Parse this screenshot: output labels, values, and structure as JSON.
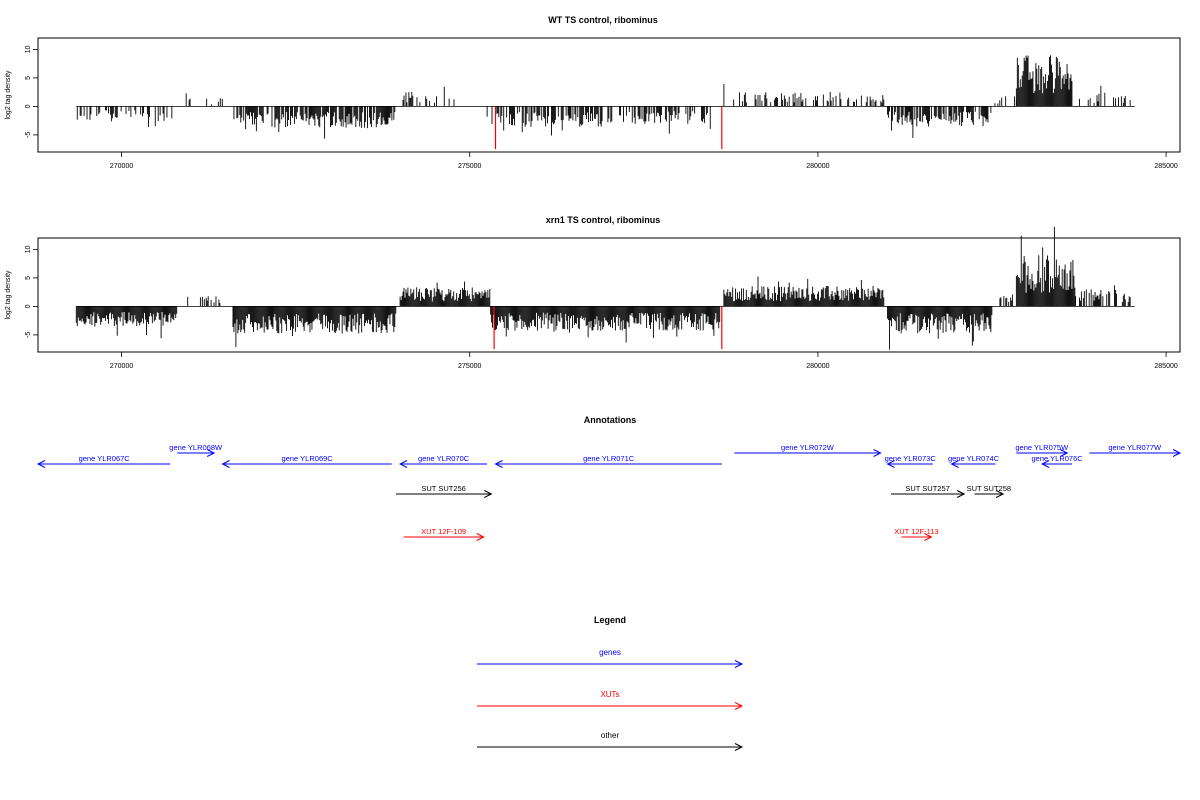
{
  "chart_data": [
    {
      "type": "bar",
      "title": "WT TS control, ribominus",
      "ylabel": "log2 tag density",
      "xlim": [
        268800,
        285200
      ],
      "ylim": [
        -8,
        12
      ],
      "x_ticks": [
        270000,
        275000,
        280000,
        285000
      ],
      "x_tick_labels": [
        "270000",
        "275000",
        "280000",
        "285000"
      ],
      "y_ticks": [
        -5,
        0,
        5,
        10
      ],
      "y_tick_labels": [
        "-5",
        "0",
        "5",
        "10"
      ],
      "baseline_range": [
        269350,
        284550
      ],
      "segments": [
        {
          "start": 269350,
          "end": 270800,
          "dir": -1,
          "density": 0.35,
          "amp": 2.2
        },
        {
          "start": 270900,
          "end": 271550,
          "dir": 1,
          "density": 0.15,
          "amp": 1.2
        },
        {
          "start": 271600,
          "end": 273950,
          "dir": -1,
          "density": 0.8,
          "amp": 3.2
        },
        {
          "start": 274000,
          "end": 274200,
          "dir": 1,
          "density": 0.6,
          "amp": 2.2
        },
        {
          "start": 274200,
          "end": 275150,
          "dir": 1,
          "density": 0.15,
          "amp": 1.8
        },
        {
          "start": 275250,
          "end": 276900,
          "dir": -1,
          "density": 0.6,
          "amp": 3.0
        },
        {
          "start": 276900,
          "end": 278550,
          "dir": -1,
          "density": 0.45,
          "amp": 2.6
        },
        {
          "start": 278650,
          "end": 280950,
          "dir": 1,
          "density": 0.45,
          "amp": 2.2
        },
        {
          "start": 281000,
          "end": 282500,
          "dir": -1,
          "density": 0.75,
          "amp": 3.0
        },
        {
          "start": 282500,
          "end": 282850,
          "dir": 1,
          "density": 0.3,
          "amp": 1.5
        },
        {
          "start": 282850,
          "end": 283650,
          "dir": 1,
          "density": 1.0,
          "amp": 7.5
        },
        {
          "start": 283700,
          "end": 284500,
          "dir": 1,
          "density": 0.3,
          "amp": 2.0
        }
      ],
      "red_markers": [
        {
          "x": 275370,
          "y": -7.5
        },
        {
          "x": 278620,
          "y": -7.5
        }
      ]
    },
    {
      "type": "bar",
      "title": "xrn1 TS control, ribominus",
      "ylabel": "log2 tag density",
      "xlim": [
        268800,
        285200
      ],
      "ylim": [
        -8,
        12
      ],
      "x_ticks": [
        270000,
        275000,
        280000,
        285000
      ],
      "x_tick_labels": [
        "270000",
        "275000",
        "280000",
        "285000"
      ],
      "y_ticks": [
        -5,
        0,
        5,
        10
      ],
      "y_tick_labels": [
        "-5",
        "0",
        "5",
        "10"
      ],
      "baseline_range": [
        269350,
        284550
      ],
      "segments": [
        {
          "start": 269350,
          "end": 270800,
          "dir": -1,
          "density": 1.0,
          "amp": 3.0
        },
        {
          "start": 270950,
          "end": 271450,
          "dir": 1,
          "density": 0.3,
          "amp": 1.5
        },
        {
          "start": 271600,
          "end": 273950,
          "dir": -1,
          "density": 1.0,
          "amp": 4.0
        },
        {
          "start": 274000,
          "end": 275300,
          "dir": 1,
          "density": 1.0,
          "amp": 2.8
        },
        {
          "start": 275300,
          "end": 278600,
          "dir": -1,
          "density": 1.0,
          "amp": 3.6
        },
        {
          "start": 278650,
          "end": 280950,
          "dir": 1,
          "density": 1.0,
          "amp": 3.0
        },
        {
          "start": 281000,
          "end": 282500,
          "dir": -1,
          "density": 1.0,
          "amp": 4.0
        },
        {
          "start": 282600,
          "end": 282850,
          "dir": 1,
          "density": 0.6,
          "amp": 2.0
        },
        {
          "start": 282850,
          "end": 283700,
          "dir": 1,
          "density": 1.0,
          "amp": 7.5
        },
        {
          "start": 283700,
          "end": 284500,
          "dir": 1,
          "density": 0.6,
          "amp": 2.5
        }
      ],
      "red_markers": [
        {
          "x": 275350,
          "y": -7.5
        },
        {
          "x": 278620,
          "y": -7.5
        }
      ]
    }
  ],
  "annotations": {
    "title": "Annotations",
    "items": [
      {
        "label": "gene YLR067C",
        "start": 268800,
        "end": 270700,
        "dir": -1,
        "row": 1,
        "color": "#0000ff"
      },
      {
        "label": "gene YLR068W",
        "start": 270800,
        "end": 271330,
        "dir": 1,
        "row": 0,
        "color": "#0000ff"
      },
      {
        "label": "gene YLR069C",
        "start": 271450,
        "end": 273880,
        "dir": -1,
        "row": 1,
        "color": "#0000ff"
      },
      {
        "label": "gene YLR070C",
        "start": 274000,
        "end": 275250,
        "dir": -1,
        "row": 1,
        "color": "#0000ff"
      },
      {
        "label": "gene YLR071C",
        "start": 275370,
        "end": 278620,
        "dir": -1,
        "row": 1,
        "color": "#0000ff"
      },
      {
        "label": "gene YLR072W",
        "start": 278800,
        "end": 280900,
        "dir": 1,
        "row": 0,
        "color": "#0000ff"
      },
      {
        "label": "gene YLR073C",
        "start": 281000,
        "end": 281650,
        "dir": -1,
        "row": 1,
        "color": "#0000ff"
      },
      {
        "label": "gene YLR074C",
        "start": 281920,
        "end": 282550,
        "dir": -1,
        "row": 1,
        "color": "#0000ff"
      },
      {
        "label": "gene YLR075W",
        "start": 282850,
        "end": 283580,
        "dir": 1,
        "row": 0,
        "color": "#0000ff"
      },
      {
        "label": "gene YLR076C",
        "start": 283220,
        "end": 283650,
        "dir": -1,
        "row": 1,
        "color": "#0000ff"
      },
      {
        "label": "gene YLR077W",
        "start": 283900,
        "end": 285200,
        "dir": 1,
        "row": 0,
        "color": "#0000ff"
      },
      {
        "label": "SUT SUT256",
        "start": 273940,
        "end": 275310,
        "dir": 1,
        "row": 2,
        "color": "#000000"
      },
      {
        "label": "SUT SUT257",
        "start": 281050,
        "end": 282100,
        "dir": 1,
        "row": 2,
        "color": "#000000"
      },
      {
        "label": "SUT SUT258",
        "start": 282250,
        "end": 282660,
        "dir": 1,
        "row": 2,
        "color": "#000000"
      },
      {
        "label": "XUT 12F-109",
        "start": 274050,
        "end": 275200,
        "dir": 1,
        "row": 3,
        "color": "#ff0000"
      },
      {
        "label": "XUT 12F-113",
        "start": 281200,
        "end": 281630,
        "dir": 1,
        "row": 3,
        "color": "#ff0000"
      }
    ]
  },
  "legend": {
    "title": "Legend",
    "items": [
      {
        "label": "genes",
        "color": "#0000ff"
      },
      {
        "label": "XUTs",
        "color": "#ff0000"
      },
      {
        "label": "other",
        "color": "#000000"
      }
    ]
  }
}
